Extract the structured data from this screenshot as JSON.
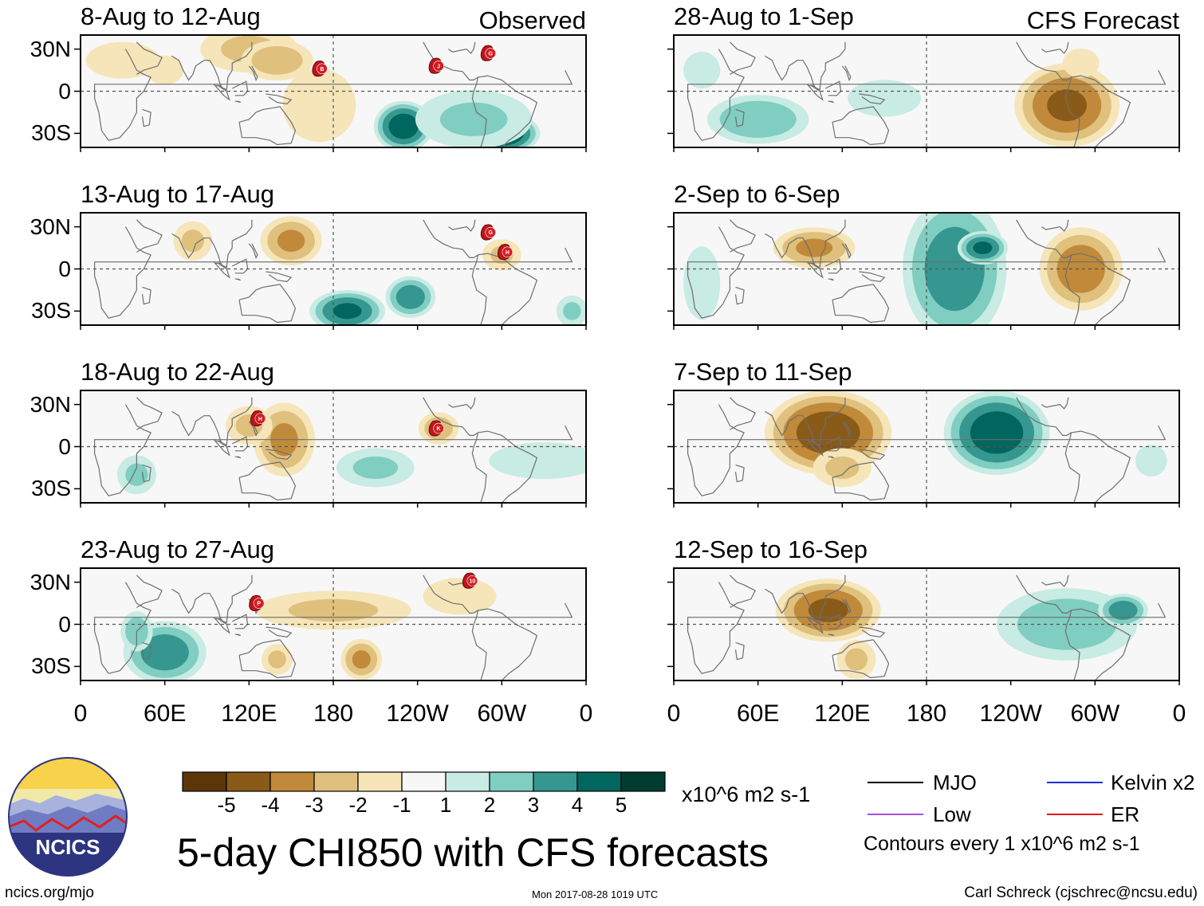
{
  "panels": [
    {
      "id": "obs1",
      "title": "8-Aug to 12-Aug",
      "col": 0,
      "row": 0,
      "corner_label": "Observed",
      "storms": [
        {
          "letter": "B",
          "lon": 172,
          "lat": 16
        },
        {
          "letter": "J",
          "lon": 255,
          "lat": 18
        },
        {
          "letter": "G",
          "lon": 292,
          "lat": 27
        }
      ]
    },
    {
      "id": "obs2",
      "title": "13-Aug to 17-Aug",
      "col": 0,
      "row": 1,
      "storms": [
        {
          "letter": "G",
          "lon": 292,
          "lat": 26
        },
        {
          "letter": "H",
          "lon": 304,
          "lat": 12
        }
      ]
    },
    {
      "id": "obs3",
      "title": "18-Aug to 22-Aug",
      "col": 0,
      "row": 2,
      "storms": [
        {
          "letter": "H",
          "lon": 128,
          "lat": 20
        },
        {
          "letter": "K",
          "lon": 255,
          "lat": 13
        }
      ]
    },
    {
      "id": "obs4",
      "title": "23-Aug to 27-Aug",
      "col": 0,
      "row": 3,
      "storms": [
        {
          "letter": "P",
          "lon": 127,
          "lat": 15
        },
        {
          "letter": "10",
          "lon": 279,
          "lat": 31
        }
      ]
    },
    {
      "id": "fc1",
      "title": "28-Aug to 1-Sep",
      "col": 1,
      "row": 0,
      "corner_label": "CFS Forecast",
      "storms": []
    },
    {
      "id": "fc2",
      "title": "2-Sep to 6-Sep",
      "col": 1,
      "row": 1,
      "storms": []
    },
    {
      "id": "fc3",
      "title": "7-Sep to 11-Sep",
      "col": 1,
      "row": 2,
      "storms": []
    },
    {
      "id": "fc4",
      "title": "12-Sep to 16-Sep",
      "col": 1,
      "row": 3,
      "storms": []
    }
  ],
  "lat_ticks": [
    "30N",
    "0",
    "30S"
  ],
  "lon_ticks": [
    "0",
    "60E",
    "120E",
    "180",
    "120W",
    "60W",
    "0"
  ],
  "colorbar": {
    "colors": [
      "#5c3509",
      "#8a5a19",
      "#c08a3a",
      "#dfc07c",
      "#f5e5b9",
      "#f7f7f7",
      "#c8ebe3",
      "#80cdc1",
      "#35978f",
      "#01665e",
      "#003c30"
    ],
    "labels": [
      "-5",
      "-4",
      "-3",
      "-2",
      "-1",
      "1",
      "2",
      "3",
      "4",
      "5"
    ],
    "units": "x10^6 m2 s-1"
  },
  "legend": {
    "items": [
      {
        "label": "MJO",
        "color": "#000000"
      },
      {
        "label": "Kelvin x2",
        "color": "#1f2fd1"
      },
      {
        "label": "Low",
        "color": "#a34de0"
      },
      {
        "label": "ER",
        "color": "#e01a1a"
      }
    ],
    "contours_note": "Contours every 1 x10^6 m2 s-1"
  },
  "main_title": "5-day CHI850 with CFS forecasts",
  "logo_text": "NCICS",
  "footer": {
    "left": "ncics.org/mjo",
    "center": "Mon 2017-08-28 1019 UTC",
    "right": "Carl Schreck (cjschrec@ncsu.edu)"
  },
  "anomalies": {
    "obs1": [
      [
        120,
        30,
        25,
        12,
        -2
      ],
      [
        140,
        22,
        18,
        10,
        -2.5
      ],
      [
        30,
        22,
        20,
        10,
        -1.5
      ],
      [
        60,
        15,
        10,
        8,
        -1.5
      ],
      [
        230,
        -25,
        14,
        12,
        4.5
      ],
      [
        300,
        -30,
        18,
        10,
        5
      ],
      [
        170,
        -10,
        20,
        20,
        -1.5
      ],
      [
        280,
        -20,
        30,
        15,
        2
      ]
    ],
    "obs2": [
      [
        150,
        20,
        15,
        12,
        -3
      ],
      [
        80,
        20,
        10,
        10,
        -2
      ],
      [
        190,
        -30,
        18,
        10,
        4
      ],
      [
        235,
        -20,
        12,
        10,
        3.5
      ],
      [
        300,
        10,
        10,
        8,
        -2
      ],
      [
        350,
        -30,
        8,
        8,
        2
      ]
    ],
    "obs3": [
      [
        145,
        5,
        15,
        18,
        -3
      ],
      [
        120,
        15,
        12,
        10,
        -2
      ],
      [
        255,
        13,
        10,
        8,
        -2.5
      ],
      [
        40,
        -20,
        10,
        10,
        2
      ],
      [
        210,
        -15,
        20,
        10,
        2
      ],
      [
        330,
        -10,
        30,
        10,
        1.5
      ]
    ],
    "obs4": [
      [
        60,
        -20,
        20,
        15,
        3.5
      ],
      [
        40,
        -5,
        8,
        10,
        2.5
      ],
      [
        180,
        10,
        40,
        10,
        -2
      ],
      [
        200,
        -25,
        10,
        10,
        -3
      ],
      [
        270,
        20,
        20,
        10,
        -1.5
      ],
      [
        140,
        -25,
        8,
        8,
        -2
      ]
    ],
    "fc1": [
      [
        60,
        -20,
        25,
        12,
        2.8
      ],
      [
        280,
        -10,
        25,
        20,
        -4
      ],
      [
        150,
        -5,
        20,
        10,
        1.5
      ],
      [
        20,
        15,
        10,
        10,
        1.5
      ],
      [
        290,
        20,
        10,
        8,
        -1.5
      ]
    ],
    "fc2": [
      [
        200,
        0,
        25,
        35,
        3.5
      ],
      [
        220,
        15,
        12,
        8,
        4
      ],
      [
        100,
        15,
        20,
        10,
        -3
      ],
      [
        290,
        0,
        20,
        20,
        -3.5
      ],
      [
        20,
        -10,
        10,
        20,
        1.5
      ]
    ],
    "fc3": [
      [
        110,
        10,
        30,
        20,
        -4.5
      ],
      [
        230,
        10,
        25,
        20,
        4.5
      ],
      [
        120,
        -15,
        15,
        10,
        -2
      ],
      [
        340,
        -10,
        10,
        10,
        1
      ]
    ],
    "fc4": [
      [
        110,
        10,
        25,
        15,
        -4
      ],
      [
        280,
        0,
        35,
        18,
        2.5
      ],
      [
        320,
        10,
        12,
        8,
        3.5
      ],
      [
        130,
        -25,
        10,
        10,
        -2
      ]
    ]
  }
}
